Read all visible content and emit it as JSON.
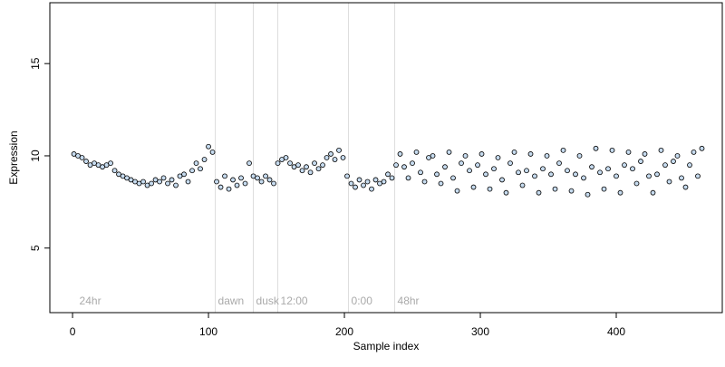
{
  "chart_data": {
    "type": "scatter",
    "x_label": "Sample index",
    "y_label": "Expression",
    "xlim": [
      -16.7,
      478
    ],
    "ylim": [
      1.5,
      18.3
    ],
    "xticks": [
      0,
      100,
      200,
      300,
      400
    ],
    "yticks": [
      5,
      10,
      15
    ],
    "vlines": [
      105,
      133,
      151,
      203,
      237
    ],
    "annotations": [
      {
        "text": "24hr",
        "x": 3
      },
      {
        "text": "dawn",
        "x": 105
      },
      {
        "text": "dusk",
        "x": 133
      },
      {
        "text": "12:00",
        "x": 151
      },
      {
        "text": "0:00",
        "x": 203
      },
      {
        "text": "48hr",
        "x": 237
      }
    ],
    "series": [
      {
        "color": "#c6dbef",
        "x": [
          1,
          4,
          7,
          10,
          13,
          16,
          19,
          22,
          25,
          28,
          31,
          34,
          37,
          40,
          43,
          46,
          49,
          52,
          55,
          58,
          61,
          64,
          67,
          70,
          73,
          76,
          79,
          82,
          85,
          88,
          91,
          94,
          97,
          100,
          103,
          106,
          109,
          112,
          115,
          118,
          121,
          124,
          127,
          130,
          133,
          136,
          139,
          142,
          145,
          148,
          151,
          154,
          157,
          160,
          163,
          166,
          169,
          172,
          175,
          178,
          181,
          184,
          187,
          190,
          193,
          196,
          199,
          202,
          205,
          208,
          211,
          214,
          217,
          220,
          223,
          226,
          229,
          232,
          235,
          238,
          241,
          244,
          247,
          250,
          253,
          256,
          259,
          262,
          265,
          268,
          271,
          274,
          277,
          280,
          283,
          286,
          289,
          292,
          295,
          298,
          301,
          304,
          307,
          310,
          313,
          316,
          319,
          322,
          325,
          328,
          331,
          334,
          337,
          340,
          343,
          346,
          349,
          352,
          355,
          358,
          361,
          364,
          367,
          370,
          373,
          376,
          379,
          382,
          385,
          388,
          391,
          394,
          397,
          400,
          403,
          406,
          409,
          412,
          415,
          418,
          421,
          424,
          427,
          430,
          433,
          436,
          439,
          442,
          445,
          448,
          451,
          454,
          457,
          460,
          463
        ],
        "values": [
          10.1,
          10.0,
          9.9,
          9.7,
          9.5,
          9.6,
          9.5,
          9.4,
          9.5,
          9.6,
          9.2,
          9.0,
          8.9,
          8.8,
          8.7,
          8.6,
          8.5,
          8.6,
          8.4,
          8.5,
          8.7,
          8.6,
          8.8,
          8.5,
          8.7,
          8.4,
          8.9,
          9.0,
          8.6,
          9.2,
          9.6,
          9.3,
          9.8,
          10.5,
          10.2,
          8.6,
          8.3,
          8.9,
          8.2,
          8.7,
          8.4,
          8.8,
          8.5,
          9.6,
          8.9,
          8.8,
          8.6,
          8.9,
          8.7,
          8.5,
          9.6,
          9.8,
          9.9,
          9.6,
          9.4,
          9.5,
          9.2,
          9.4,
          9.1,
          9.6,
          9.3,
          9.5,
          9.9,
          10.1,
          9.8,
          10.3,
          9.9,
          8.9,
          8.5,
          8.3,
          8.7,
          8.4,
          8.6,
          8.2,
          8.7,
          8.5,
          8.6,
          9.0,
          8.8,
          9.5,
          10.1,
          9.4,
          8.8,
          9.6,
          10.2,
          9.1,
          8.6,
          9.9,
          10.0,
          9.0,
          8.5,
          9.4,
          10.2,
          8.8,
          8.1,
          9.6,
          10.0,
          9.2,
          8.3,
          9.5,
          10.1,
          9.0,
          8.2,
          9.3,
          9.9,
          8.7,
          8.0,
          9.6,
          10.2,
          9.1,
          8.4,
          9.2,
          10.1,
          8.9,
          8.0,
          9.3,
          10.0,
          9.0,
          8.2,
          9.6,
          10.3,
          9.2,
          8.1,
          9.0,
          10.0,
          8.8,
          7.9,
          9.4,
          10.4,
          9.1,
          8.2,
          9.3,
          10.3,
          8.9,
          8.0,
          9.5,
          10.2,
          9.3,
          8.5,
          9.7,
          10.1,
          8.9,
          8.0,
          9.0,
          10.3,
          9.5,
          8.6,
          9.7,
          10.0,
          8.8,
          8.3,
          9.5,
          10.2,
          8.9,
          10.4
        ]
      }
    ]
  }
}
